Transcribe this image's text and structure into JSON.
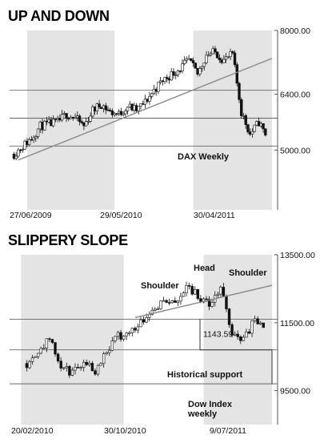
{
  "chart_data": [
    {
      "type": "candlestick",
      "title": "UP AND DOWN",
      "series_label": "DAX Weekly",
      "x_tick_labels": [
        "27/06/2009",
        "29/05/2010",
        "30/04/2011"
      ],
      "y_tick_labels": [
        "8000.00",
        "6400.00",
        "5000.00"
      ],
      "y_ticks": [
        8000,
        6400,
        5000
      ],
      "ylim": [
        3500,
        8000
      ],
      "horizontal_levels": [
        5100,
        5800,
        6500
      ],
      "trendline": {
        "start": [
          "2009-07",
          4750
        ],
        "end": [
          "2011-11",
          7300
        ]
      },
      "shaded_periods": [
        [
          "2009-08",
          "2010-05"
        ],
        [
          "2011-03",
          "2011-11"
        ]
      ],
      "close_path": [
        [
          "2009-06",
          4900
        ],
        [
          "2009-07",
          5100
        ],
        [
          "2009-08",
          5300
        ],
        [
          "2009-09",
          5600
        ],
        [
          "2009-10",
          5650
        ],
        [
          "2009-11",
          5700
        ],
        [
          "2009-12",
          5900
        ],
        [
          "2010-01",
          5800
        ],
        [
          "2010-02",
          5600
        ],
        [
          "2010-03",
          6000
        ],
        [
          "2010-04",
          6150
        ],
        [
          "2010-05",
          5950
        ],
        [
          "2010-06",
          5900
        ],
        [
          "2010-07",
          6100
        ],
        [
          "2010-08",
          6000
        ],
        [
          "2010-09",
          6200
        ],
        [
          "2010-10",
          6500
        ],
        [
          "2010-11",
          6750
        ],
        [
          "2010-12",
          6900
        ],
        [
          "2011-01",
          7050
        ],
        [
          "2011-02",
          7250
        ],
        [
          "2011-03",
          6900
        ],
        [
          "2011-04",
          7400
        ],
        [
          "2011-05",
          7450
        ],
        [
          "2011-06",
          7250
        ],
        [
          "2011-07",
          7400
        ],
        [
          "2011-08",
          5950
        ],
        [
          "2011-09",
          5400
        ],
        [
          "2011-10",
          5700
        ],
        [
          "2011-11",
          5300
        ]
      ]
    },
    {
      "type": "candlestick",
      "title": "SLIPPERY SLOPE",
      "series_label": "Dow Index weekly",
      "x_tick_labels": [
        "20/02/2010",
        "30/10/2010",
        "9/07/2011"
      ],
      "y_tick_labels": [
        "13500.00",
        "11500.00",
        "9500.00"
      ],
      "y_ticks": [
        13500,
        11500,
        9500
      ],
      "ylim": [
        8500,
        13500
      ],
      "horizontal_levels": [
        9700,
        10700,
        11600
      ],
      "trendline": {
        "start": [
          "2010-12",
          11650
        ],
        "end": [
          "2011-11",
          12600
        ]
      },
      "shaded_periods": [
        [
          "2010-02",
          "2010-10"
        ],
        [
          "2011-06",
          "2011-11"
        ]
      ],
      "annotations": [
        "Head",
        "Shoulder",
        "Shoulder",
        "1143.59",
        "Historical support"
      ],
      "close_path": [
        [
          "2010-02",
          10300
        ],
        [
          "2010-03",
          10700
        ],
        [
          "2010-04",
          11000
        ],
        [
          "2010-05",
          10200
        ],
        [
          "2010-06",
          10000
        ],
        [
          "2010-07",
          10400
        ],
        [
          "2010-08",
          10100
        ],
        [
          "2010-09",
          10700
        ],
        [
          "2010-10",
          11100
        ],
        [
          "2010-11",
          11200
        ],
        [
          "2010-12",
          11550
        ],
        [
          "2011-01",
          11900
        ],
        [
          "2011-02",
          12150
        ],
        [
          "2011-03",
          12050
        ],
        [
          "2011-04",
          12600
        ],
        [
          "2011-05",
          12300
        ],
        [
          "2011-06",
          12000
        ],
        [
          "2011-07",
          12500
        ],
        [
          "2011-08",
          11200
        ],
        [
          "2011-09",
          11000
        ],
        [
          "2011-10",
          11600
        ],
        [
          "2011-11",
          11150
        ]
      ]
    }
  ]
}
